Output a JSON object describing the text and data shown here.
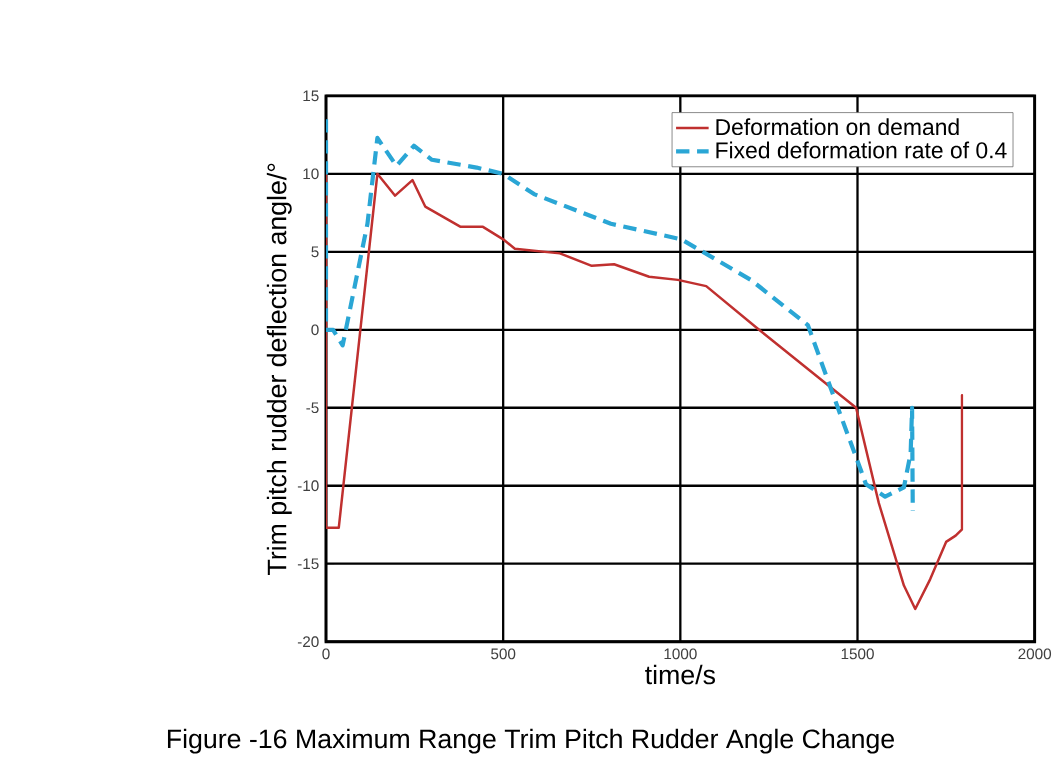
{
  "chart_data": {
    "type": "line",
    "title": "Figure -16 Maximum Range Trim Pitch Rudder Angle Change",
    "xlabel": "time/s",
    "ylabel": "Trim pitch rudder deflection angle/°",
    "xlim": [
      0,
      2000
    ],
    "ylim": [
      -20,
      15
    ],
    "xticks": [
      0,
      500,
      1000,
      1500,
      2000
    ],
    "yticks": [
      -20,
      -15,
      -10,
      -5,
      0,
      5,
      10,
      15
    ],
    "grid": true,
    "legend": "top right",
    "series": [
      {
        "name": "Deformation on demand",
        "color": "#c0302f",
        "line_style": "solid",
        "x": [
          0,
          0,
          36,
          145,
          195,
          244,
          280,
          380,
          443,
          500,
          533,
          660,
          750,
          813,
          912,
          993,
          1073,
          1217,
          1496,
          1560,
          1631,
          1663,
          1705,
          1750,
          1777,
          1795,
          1795,
          1795
        ],
        "values": [
          10,
          -12.7,
          -12.7,
          10,
          8.6,
          9.6,
          7.9,
          6.6,
          6.6,
          5.8,
          5.2,
          4.9,
          4.1,
          4.2,
          3.4,
          3.2,
          2.8,
          0.1,
          -5.0,
          -11.1,
          -16.4,
          -17.9,
          -16.0,
          -13.6,
          -13.2,
          -12.8,
          -4.2,
          -11.0
        ]
      },
      {
        "name": "Fixed deformation rate of 0.4",
        "color": "#2aa6d5",
        "line_style": "dashed",
        "x": [
          0,
          0,
          20,
          47,
          117,
          145,
          199,
          248,
          299,
          425,
          500,
          587,
          804,
          1003,
          1199,
          1360,
          1451,
          1524,
          1578,
          1631,
          1650,
          1654,
          1656
        ],
        "values": [
          13.5,
          0,
          0,
          -1.0,
          6.8,
          12.3,
          10.5,
          11.8,
          10.9,
          10.4,
          10.0,
          8.7,
          6.8,
          5.8,
          3.2,
          0.3,
          -5.4,
          -9.9,
          -10.7,
          -10.1,
          -7.9,
          -5.0,
          -11.6
        ]
      }
    ]
  }
}
